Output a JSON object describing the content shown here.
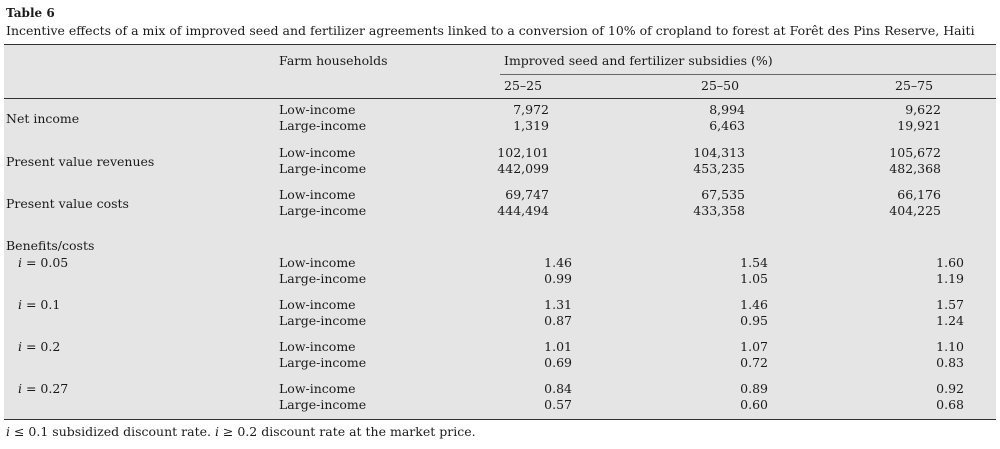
{
  "table_label": "Table 6",
  "caption": "Incentive effects of a mix of improved seed and fertilizer agreements linked to a conversion of 10% of cropland to forest at Forêt des Pins Reserve, Haiti",
  "headers": {
    "farm_households": "Farm households",
    "subsidies": "Improved seed and fertilizer subsidies (%)",
    "cols": [
      "25–25",
      "25–50",
      "25–75"
    ]
  },
  "groups": [
    {
      "label": "Net income",
      "rows": [
        {
          "household": "Low-income",
          "values": [
            "7,972",
            "8,994",
            "9,622"
          ]
        },
        {
          "household": "Large-income",
          "values": [
            "1,319",
            "6,463",
            "19,921"
          ]
        }
      ]
    },
    {
      "label": "Present value revenues",
      "rows": [
        {
          "household": "Low-income",
          "values": [
            "102,101",
            "104,313",
            "105,672"
          ]
        },
        {
          "household": "Large-income",
          "values": [
            "442,099",
            "453,235",
            "482,368"
          ]
        }
      ]
    },
    {
      "label": "Present value costs",
      "rows": [
        {
          "household": "Low-income",
          "values": [
            "69,747",
            "67,535",
            "66,176"
          ]
        },
        {
          "household": "Large-income",
          "values": [
            "444,494",
            "433,358",
            "404,225"
          ]
        }
      ]
    }
  ],
  "bc_label": "Benefits/costs",
  "bc_groups": [
    {
      "i": "i",
      "rate": " = 0.05",
      "rows": [
        {
          "household": "Low-income",
          "values": [
            "1.46",
            "1.54",
            "1.60"
          ]
        },
        {
          "household": "Large-income",
          "values": [
            "0.99",
            "1.05",
            "1.19"
          ]
        }
      ]
    },
    {
      "i": "i",
      "rate": " = 0.1",
      "rows": [
        {
          "household": "Low-income",
          "values": [
            "1.31",
            "1.46",
            "1.57"
          ]
        },
        {
          "household": "Large-income",
          "values": [
            "0.87",
            "0.95",
            "1.24"
          ]
        }
      ]
    },
    {
      "i": "i",
      "rate": " = 0.2",
      "rows": [
        {
          "household": "Low-income",
          "values": [
            "1.01",
            "1.07",
            "1.10"
          ]
        },
        {
          "household": "Large-income",
          "values": [
            "0.69",
            "0.72",
            "0.83"
          ]
        }
      ]
    },
    {
      "i": "i",
      "rate": " = 0.27",
      "rows": [
        {
          "household": "Low-income",
          "values": [
            "0.84",
            "0.89",
            "0.92"
          ]
        },
        {
          "household": "Large-income",
          "values": [
            "0.57",
            "0.60",
            "0.68"
          ]
        }
      ]
    }
  ],
  "footnote": {
    "i1": "i",
    "part1": " ≤ 0.1 subsidized discount rate. ",
    "i2": "i",
    "part2": " ≥ 0.2 discount rate at the market price."
  }
}
